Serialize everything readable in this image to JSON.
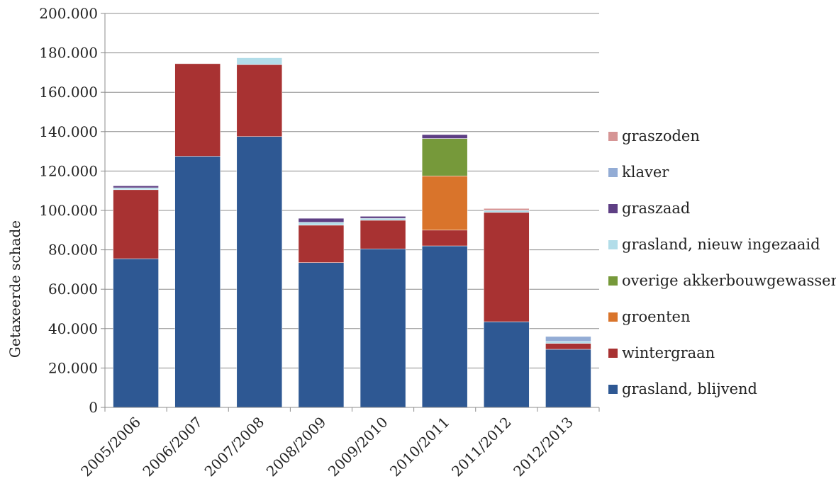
{
  "chart_data": {
    "type": "bar",
    "stacked": true,
    "categories": [
      "2005/2006",
      "2006/2007",
      "2007/2008",
      "2008/2009",
      "2009/2010",
      "2010/2011",
      "2011/2012",
      "2012/2013"
    ],
    "ylabel": "Getaxeerde schade",
    "xlabel": "",
    "ylim": [
      0,
      200000
    ],
    "yticks": [
      {
        "value": 0,
        "label": "0"
      },
      {
        "value": 20000,
        "label": "20.000"
      },
      {
        "value": 40000,
        "label": "40.000"
      },
      {
        "value": 60000,
        "label": "60.000"
      },
      {
        "value": 80000,
        "label": "80.000"
      },
      {
        "value": 100000,
        "label": "100.000"
      },
      {
        "value": 120000,
        "label": "120.000"
      },
      {
        "value": 140000,
        "label": "140.000"
      },
      {
        "value": 160000,
        "label": "160.000"
      },
      {
        "value": 180000,
        "label": "180.000"
      },
      {
        "value": 200000,
        "label": "200.000"
      }
    ],
    "grid": true,
    "legend_position": "right",
    "series": [
      {
        "name": "grasland, blijvend",
        "color": "#2e5893",
        "values": [
          75500,
          127500,
          137500,
          73500,
          80500,
          82000,
          43500,
          29500
        ]
      },
      {
        "name": "wintergraan",
        "color": "#a83232",
        "values": [
          35000,
          47000,
          36500,
          19000,
          14500,
          8000,
          55500,
          3000
        ]
      },
      {
        "name": "groenten",
        "color": "#d9742b",
        "values": [
          0,
          0,
          0,
          0,
          0,
          27500,
          0,
          0
        ]
      },
      {
        "name": "overige akkerbouwgewassen",
        "color": "#76993a",
        "values": [
          0,
          0,
          0,
          0,
          0,
          19000,
          0,
          0
        ]
      },
      {
        "name": "grasland, nieuw ingezaaid",
        "color": "#b2dde9",
        "values": [
          1000,
          0,
          3500,
          1500,
          1000,
          0,
          1000,
          1000
        ]
      },
      {
        "name": "graszaad",
        "color": "#5e3f84",
        "values": [
          1000,
          0,
          0,
          2000,
          1000,
          2000,
          0,
          0
        ]
      },
      {
        "name": "klaver",
        "color": "#93acd5",
        "values": [
          0,
          0,
          0,
          0,
          0,
          0,
          0,
          2500
        ]
      },
      {
        "name": "graszoden",
        "color": "#d69595",
        "values": [
          0,
          0,
          0,
          0,
          0,
          0,
          1000,
          0
        ]
      }
    ]
  }
}
